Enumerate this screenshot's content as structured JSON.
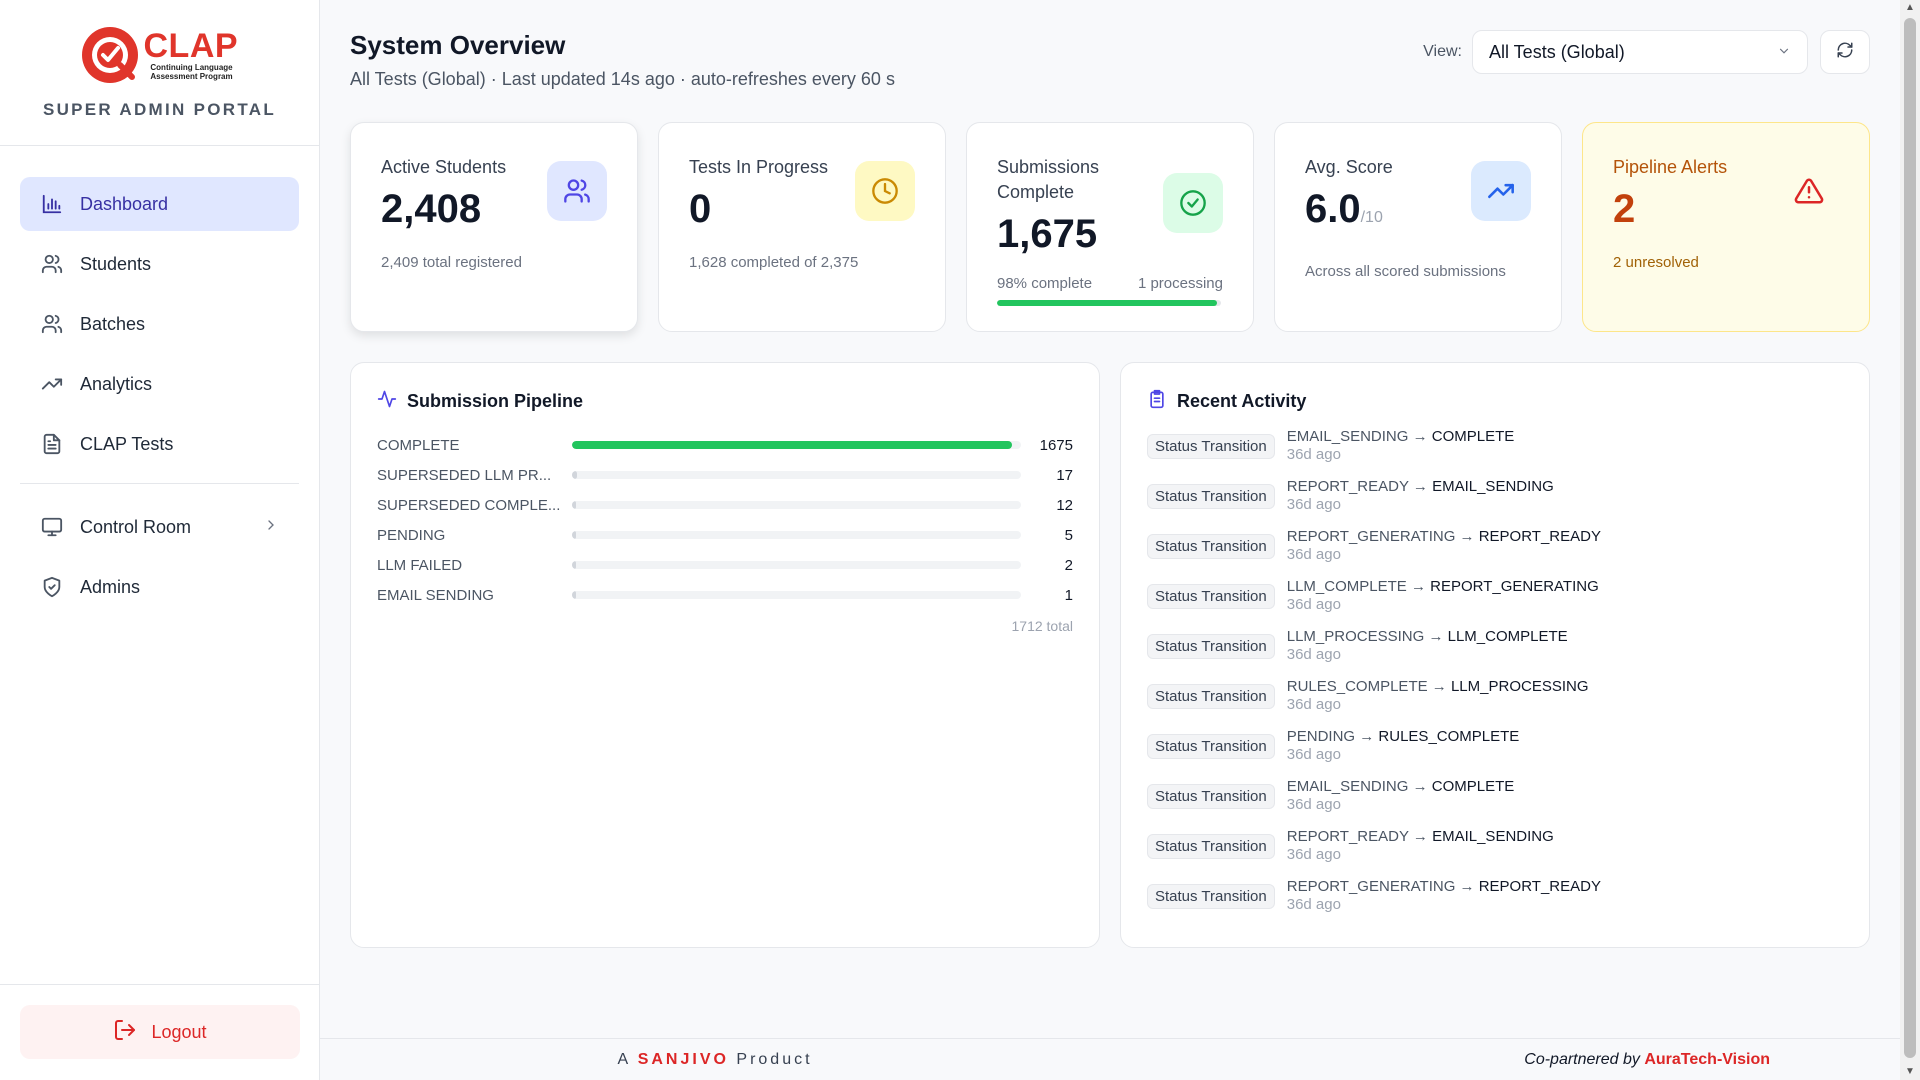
{
  "brand": {
    "logo_name": "CLAP",
    "logo_sub": "Continuing Language Assessment Program",
    "portal_title": "SUPER ADMIN PORTAL",
    "brand_color": "#e0352b"
  },
  "nav": {
    "items": [
      {
        "label": "Dashboard",
        "icon": "bar-chart-icon",
        "active": true
      },
      {
        "label": "Students",
        "icon": "users-icon"
      },
      {
        "label": "Batches",
        "icon": "users-icon"
      },
      {
        "label": "Analytics",
        "icon": "trending-up-icon"
      },
      {
        "label": "CLAP Tests",
        "icon": "document-icon"
      }
    ],
    "control_room": {
      "label": "Control Room",
      "icon": "monitor-icon"
    },
    "admins": {
      "label": "Admins",
      "icon": "shield-check-icon"
    },
    "logout": {
      "label": "Logout",
      "icon": "logout-icon"
    }
  },
  "header": {
    "title": "System Overview",
    "subtitle": "All Tests (Global) · Last updated 14s ago · auto-refreshes every 60 s",
    "view_label": "View:",
    "view_value": "All Tests (Global)"
  },
  "cards": {
    "active_students": {
      "label": "Active Students",
      "value": "2,408",
      "note": "2,409 total registered",
      "icon": "users-icon",
      "color": "#4f46e5"
    },
    "tests_in_progress": {
      "label": "Tests In Progress",
      "value": "0",
      "note": "1,628 completed of 2,375",
      "icon": "clock-icon",
      "color": "#ca8a04"
    },
    "submissions": {
      "label": "Submissions Complete",
      "value": "1,675",
      "left_note": "98% complete",
      "right_note": "1 processing",
      "progress_pct": 98,
      "icon": "check-circle-icon",
      "color": "#16a34a"
    },
    "avg_score": {
      "label": "Avg. Score",
      "value": "6.0",
      "unit": "/10",
      "note": "Across all scored submissions",
      "icon": "trending-up-icon",
      "color": "#2563eb"
    },
    "alerts": {
      "label": "Pipeline Alerts",
      "value": "2",
      "note": "2 unresolved",
      "icon": "warning-icon",
      "color": "#dc2626"
    }
  },
  "pipeline": {
    "title": "Submission Pipeline",
    "rows": [
      {
        "label": "COMPLETE",
        "count": "1675",
        "pct": 98
      },
      {
        "label": "SUPERSEDED LLM PR...",
        "count": "17",
        "pct": 1
      },
      {
        "label": "SUPERSEDED COMPLE...",
        "count": "12",
        "pct": 0.7
      },
      {
        "label": "PENDING",
        "count": "5",
        "pct": 0.3
      },
      {
        "label": "LLM FAILED",
        "count": "2",
        "pct": 0.1
      },
      {
        "label": "EMAIL SENDING",
        "count": "1",
        "pct": 0.05
      }
    ],
    "total": "1712 total"
  },
  "activity": {
    "title": "Recent Activity",
    "badge": "Status Transition",
    "items": [
      {
        "from": "EMAIL_SENDING",
        "to": "COMPLETE",
        "time": "36d ago"
      },
      {
        "from": "REPORT_READY",
        "to": "EMAIL_SENDING",
        "time": "36d ago"
      },
      {
        "from": "REPORT_GENERATING",
        "to": "REPORT_READY",
        "time": "36d ago"
      },
      {
        "from": "LLM_COMPLETE",
        "to": "REPORT_GENERATING",
        "time": "36d ago"
      },
      {
        "from": "LLM_PROCESSING",
        "to": "LLM_COMPLETE",
        "time": "36d ago"
      },
      {
        "from": "RULES_COMPLETE",
        "to": "LLM_PROCESSING",
        "time": "36d ago"
      },
      {
        "from": "PENDING",
        "to": "RULES_COMPLETE",
        "time": "36d ago"
      },
      {
        "from": "EMAIL_SENDING",
        "to": "COMPLETE",
        "time": "36d ago"
      },
      {
        "from": "REPORT_READY",
        "to": "EMAIL_SENDING",
        "time": "36d ago"
      },
      {
        "from": "REPORT_GENERATING",
        "to": "REPORT_READY",
        "time": "36d ago"
      }
    ]
  },
  "footer": {
    "prefix": "A",
    "brand": "SANJIVO",
    "suffix": "Product",
    "partner_prefix": "Co-partnered by",
    "partner": "AuraTech-Vision"
  }
}
